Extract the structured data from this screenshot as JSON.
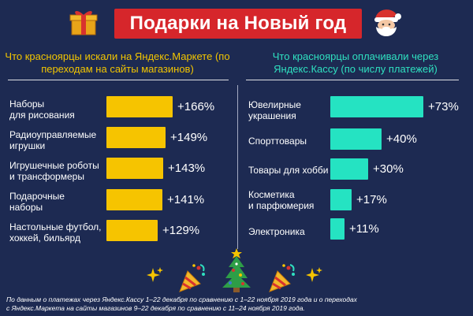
{
  "header": {
    "title": "Подарки на Новый год"
  },
  "colors": {
    "background": "#1d2a52",
    "title_bg": "#d6262b",
    "left_bar": "#f6c400",
    "right_bar": "#25e3c2"
  },
  "icons": {
    "left": "gift-icon",
    "right": "santa-icon",
    "bottom": [
      "sparkles-icon",
      "party-popper-icon",
      "christmas-tree-icon",
      "party-popper-icon",
      "sparkles-icon"
    ]
  },
  "chart_data": [
    {
      "type": "bar",
      "title": "Что красноярцы искали на Яндекс.Маркете (по переходам на сайты магазинов)",
      "categories": [
        "Наборы для рисования",
        "Радиоуправляемые игрушки",
        "Игрушечные роботы и трансформеры",
        "Подарочные наборы",
        "Настольные футбол, хоккей, бильярд"
      ],
      "label_lines": [
        [
          "Наборы",
          "для рисования"
        ],
        [
          "Радиоуправляемые",
          "игрушки"
        ],
        [
          "Игрушечные роботы",
          "и трансформеры"
        ],
        [
          "Подарочные",
          "наборы"
        ],
        [
          "Настольные футбол,",
          "хоккей, бильярд"
        ]
      ],
      "values": [
        166,
        149,
        143,
        141,
        129
      ],
      "value_labels": [
        "+166%",
        "+149%",
        "+143%",
        "+141%",
        "+129%"
      ],
      "unit": "%"
    },
    {
      "type": "bar",
      "title": "Что красноярцы оплачивали через Яндекс.Кассу (по числу платежей)",
      "categories": [
        "Ювелирные украшения",
        "Спорттовары",
        "Товары для хобби",
        "Косметика и парфюмерия",
        "Электроника"
      ],
      "label_lines": [
        [
          "Ювелирные",
          "украшения"
        ],
        [
          "Спорттовары"
        ],
        [
          "Товары для хобби"
        ],
        [
          "Косметика",
          "и парфюмерия"
        ],
        [
          "Электроника"
        ]
      ],
      "values": [
        73,
        40,
        30,
        17,
        11
      ],
      "value_labels": [
        "+73%",
        "+40%",
        "+30%",
        "+17%",
        "+11%"
      ],
      "unit": "%"
    }
  ],
  "footnote": {
    "line1": "По данным о платежах через Яндекс.Кассу 1–22 декабря по сравнению с 1–22 ноября 2019 года и о переходах",
    "line2": "с Яндекс.Маркета на сайты магазинов 9–22 декабря по сравнению с 11–24 ноября 2019 года."
  }
}
